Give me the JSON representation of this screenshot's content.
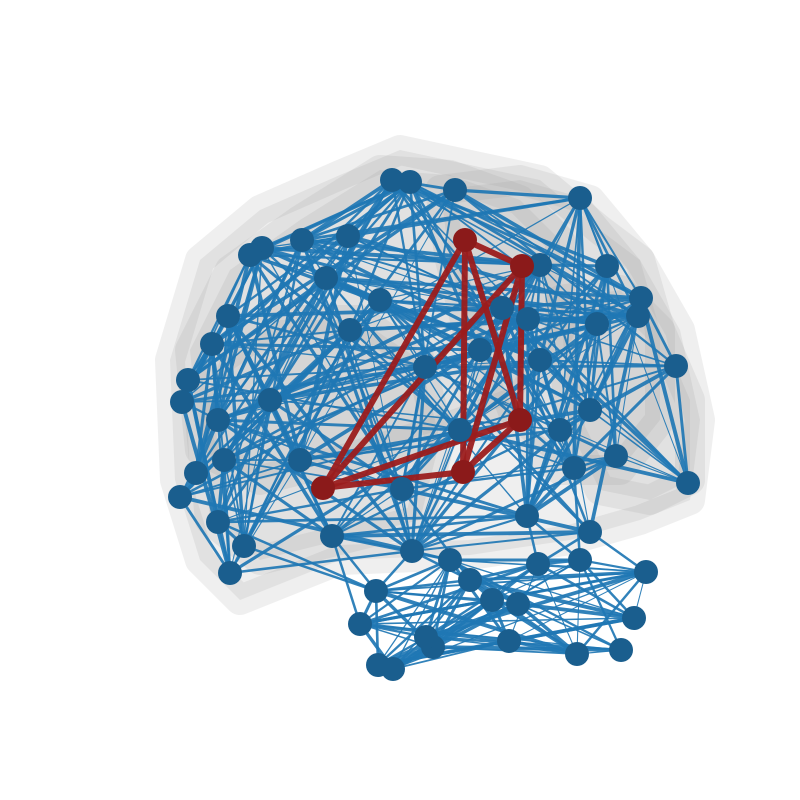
{
  "figure": {
    "type": "network-graph",
    "background": "#ffffff",
    "colors": {
      "hull": "#9e9e9e",
      "edge": "#1f77b4",
      "node": "#1a5e8e",
      "highlight_edge": "#9b1c1c",
      "highlight_node": "#8b1a1a"
    },
    "highlighted_clique_size": 5,
    "components": [
      "upper-cluster",
      "lower-cluster"
    ]
  }
}
